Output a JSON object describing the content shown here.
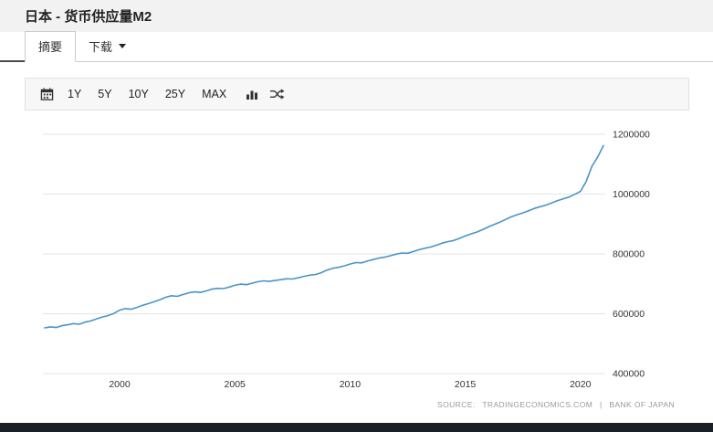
{
  "header": {
    "title": "日本 - 货币供应量M2"
  },
  "tabs": [
    {
      "label": "摘要",
      "active": true
    },
    {
      "label": "下载",
      "active": false,
      "has_dropdown": true
    }
  ],
  "toolbar": {
    "range_buttons": [
      "1Y",
      "5Y",
      "10Y",
      "25Y",
      "MAX"
    ],
    "icons": [
      "calendar-icon",
      "bar-chart-icon",
      "shuffle-icon"
    ]
  },
  "source": {
    "prefix": "SOURCE:",
    "provider": "TRADINGECONOMICS.COM",
    "separator": "|",
    "attribution": "BANK OF JAPAN"
  },
  "colors": {
    "line": "#4a94c8",
    "grid": "#e5e5e5",
    "header_bg": "#f2f2f2",
    "toolbar_bg": "#f7f7f7",
    "footer_bg": "#1a2026",
    "tick_text": "#333333"
  },
  "chart_data": {
    "type": "line",
    "title": "日本 - 货币供应量M2",
    "xlabel": "",
    "ylabel": "",
    "legend": "none",
    "grid": "horizontal",
    "x_start": 1996.75,
    "x_step": 0.25,
    "x_end": 2021.0,
    "x_ticks": [
      2000,
      2005,
      2010,
      2015,
      2020
    ],
    "y_ticks": [
      400000,
      600000,
      800000,
      1000000,
      1200000
    ],
    "ylim": [
      400000,
      1200000
    ],
    "values": [
      553000,
      556000,
      554000,
      560000,
      563000,
      567000,
      565000,
      572000,
      576000,
      583000,
      589000,
      594000,
      601000,
      612000,
      617000,
      615000,
      621000,
      628000,
      634000,
      640000,
      647000,
      655000,
      660000,
      658000,
      664000,
      670000,
      673000,
      671000,
      676000,
      682000,
      685000,
      684000,
      689000,
      695000,
      699000,
      697000,
      702000,
      707000,
      710000,
      708000,
      711000,
      714000,
      717000,
      716000,
      720000,
      725000,
      729000,
      731000,
      737000,
      746000,
      752000,
      755000,
      760000,
      766000,
      771000,
      770000,
      776000,
      781000,
      786000,
      789000,
      794000,
      799000,
      803000,
      802000,
      808000,
      814000,
      819000,
      823000,
      829000,
      836000,
      841000,
      845000,
      852000,
      860000,
      867000,
      873000,
      881000,
      890000,
      898000,
      906000,
      915000,
      924000,
      931000,
      937000,
      944000,
      952000,
      958000,
      963000,
      970000,
      978000,
      984000,
      990000,
      999000,
      1009000,
      1042000,
      1093000,
      1124000,
      1162000
    ]
  }
}
